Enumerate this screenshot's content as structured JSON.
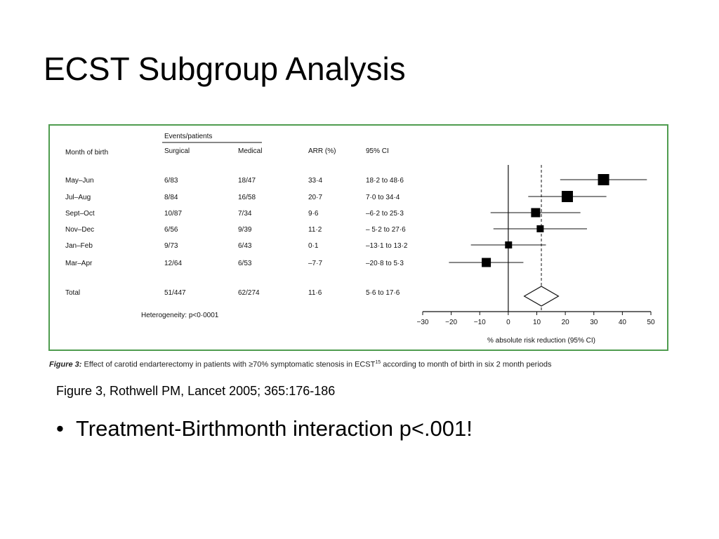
{
  "slide": {
    "title": "ECST Subgroup Analysis",
    "citation": "Figure 3, Rothwell PM, Lancet 2005; 365:176-186",
    "bullet": "Treatment-Birthmonth interaction p<.001!"
  },
  "figure": {
    "caption_label": "Figure 3:",
    "caption_text": "Effect of carotid endarterectomy in patients with ≥70% symptomatic stenosis in ECST",
    "caption_ref": "15",
    "caption_tail": "according to month of birth in six 2 month periods",
    "frame_color": "#4f9c4f"
  },
  "chart_data": {
    "type": "forest",
    "table_headers": {
      "group": "Events/patients",
      "month": "Month of birth",
      "surgical": "Surgical",
      "medical": "Medical",
      "arr": "ARR (%)",
      "ci": "95% CI"
    },
    "rows": [
      {
        "label": "May–Jun",
        "surgical": "6/83",
        "medical": "18/47",
        "arr": "33·4",
        "ci": "18·2 to 48·6",
        "point": 33.4,
        "lo": 18.2,
        "hi": 48.6,
        "size": "large"
      },
      {
        "label": "Jul–Aug",
        "surgical": "8/84",
        "medical": "16/58",
        "arr": "20·7",
        "ci": "7·0 to 34·4",
        "point": 20.7,
        "lo": 7.0,
        "hi": 34.4,
        "size": "large"
      },
      {
        "label": "Sept–Oct",
        "surgical": "10/87",
        "medical": "7/34",
        "arr": "9·6",
        "ci": "–6·2 to 25·3",
        "point": 9.6,
        "lo": -6.2,
        "hi": 25.3,
        "size": "medium"
      },
      {
        "label": "Nov–Dec",
        "surgical": "6/56",
        "medical": "9/39",
        "arr": "11·2",
        "ci": "– 5·2 to 27·6",
        "point": 11.2,
        "lo": -5.2,
        "hi": 27.6,
        "size": "small"
      },
      {
        "label": "Jan–Feb",
        "surgical": "9/73",
        "medical": "6/43",
        "arr": "0·1",
        "ci": "–13·1 to 13·2",
        "point": 0.1,
        "lo": -13.1,
        "hi": 13.2,
        "size": "small"
      },
      {
        "label": "Mar–Apr",
        "surgical": "12/64",
        "medical": "6/53",
        "arr": "–7·7",
        "ci": "–20·8 to 5·3",
        "point": -7.7,
        "lo": -20.8,
        "hi": 5.3,
        "size": "medium"
      }
    ],
    "total": {
      "label": "Total",
      "surgical": "51/447",
      "medical": "62/274",
      "arr": "11·6",
      "ci": "5·6 to 17·6",
      "point": 11.6,
      "lo": 5.6,
      "hi": 17.6
    },
    "heterogeneity": "Heterogeneity: p<0·0001",
    "xlabel": "% absolute risk reduction (95% CI)",
    "xlim": [
      -30,
      50
    ],
    "xticks": [
      -30,
      -20,
      -10,
      0,
      10,
      20,
      30,
      40,
      50
    ],
    "xtick_labels": [
      "−30",
      "−20",
      "−10",
      "0",
      "10",
      "20",
      "30",
      "40",
      "50"
    ],
    "reference_line": 0,
    "overall_line": 11.6
  }
}
